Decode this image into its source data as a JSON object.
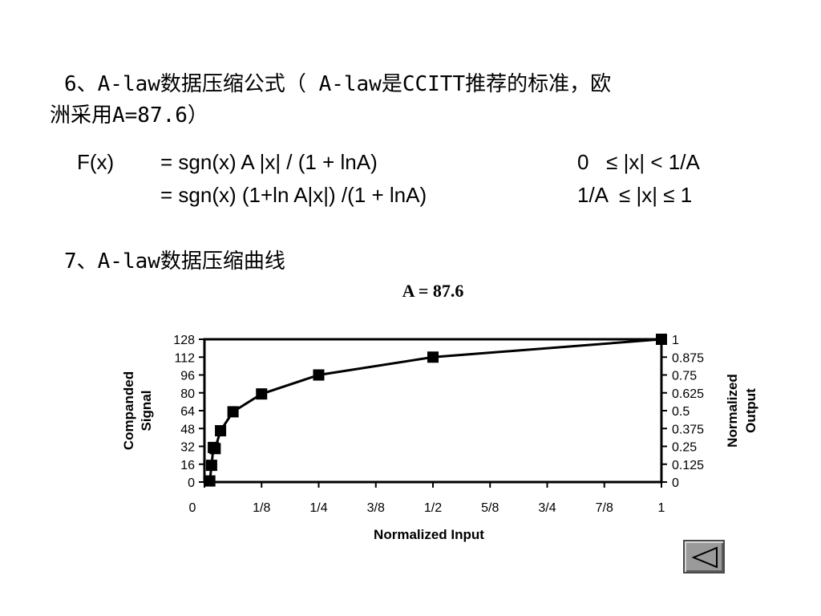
{
  "section6": {
    "line1": "6、A-law数据压缩公式（ A-law是CCITT推荐的标准，欧",
    "line2": "洲采用A=87.6）"
  },
  "formula": {
    "lhs": "F(x)",
    "rhs1": "= sgn(x) A |x| / (1 + lnA)",
    "cond1": "0   ≤ |x| < 1/A",
    "rhs2": "= sgn(x) (1+ln A|x|) /(1 + lnA)",
    "cond2": "1/A  ≤ |x| ≤ 1"
  },
  "section7": {
    "title": "7、A-law数据压缩曲线"
  },
  "chart_data": {
    "type": "line",
    "title": "A = 87.6",
    "xlabel": "Normalized Input",
    "ylabel_left": [
      "Companded",
      "Signal"
    ],
    "ylabel_right": [
      "Normalized",
      "Output"
    ],
    "x_ticks": [
      "0",
      "1/8",
      "1/4",
      "3/8",
      "1/2",
      "5/8",
      "3/4",
      "7/8",
      "1"
    ],
    "y_left_ticks": [
      "0",
      "16",
      "32",
      "48",
      "64",
      "80",
      "96",
      "112",
      "128"
    ],
    "y_right_ticks": [
      "0",
      "0.125",
      "0.25",
      "0.375",
      "0.5",
      "0.625",
      "0.75",
      "0.875",
      "1"
    ],
    "xlim": [
      0,
      1
    ],
    "ylim": [
      0,
      128
    ],
    "grid": false,
    "series": [
      {
        "x": [
          0.0117,
          0.0156,
          0.0195,
          0.0234,
          0.0352,
          0.0625,
          0.125,
          0.25,
          0.5,
          1.0
        ],
        "y": [
          1,
          15,
          31,
          30,
          46,
          63,
          79,
          96,
          112,
          128
        ]
      }
    ]
  },
  "nav": {
    "back_icon": "triangle-left-icon"
  }
}
